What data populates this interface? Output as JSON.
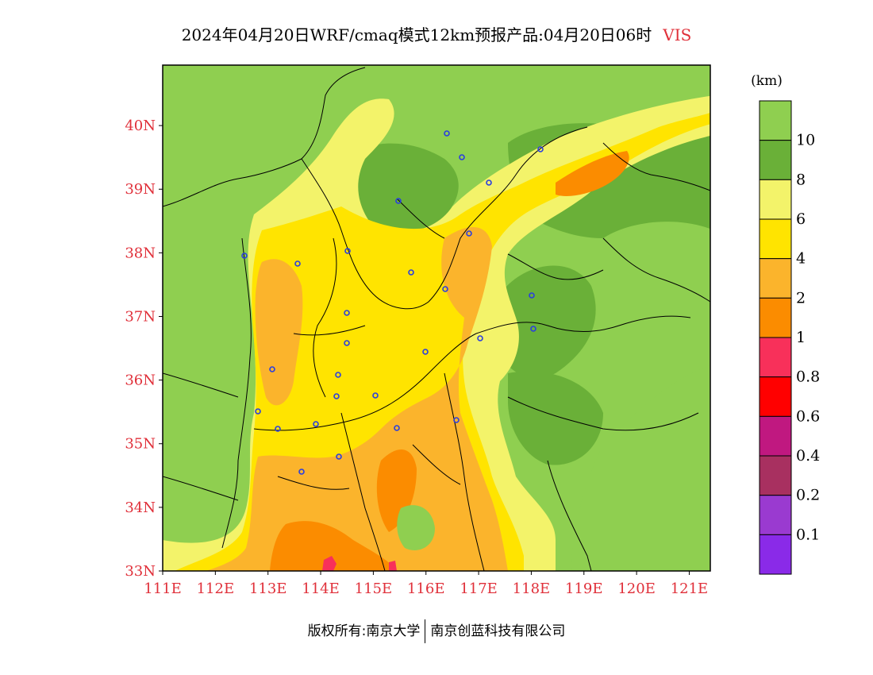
{
  "title": {
    "main": "2024年04月20日WRF/cmaq模式12km预报产品:04月20日06时",
    "variable": "VIS",
    "variable_color": "#e0303a"
  },
  "map": {
    "lon_ticks": [
      "111E",
      "112E",
      "113E",
      "114E",
      "115E",
      "116E",
      "117E",
      "118E",
      "119E",
      "120E",
      "121E"
    ],
    "lat_ticks": [
      "33N",
      "34N",
      "35N",
      "36N",
      "37N",
      "38N",
      "39N",
      "40N"
    ],
    "tick_label_color": "#e0303a"
  },
  "legend": {
    "unit": "(km)",
    "levels": [
      {
        "label": "10",
        "color": "#8fcf50"
      },
      {
        "label": "8",
        "color": "#6ab038"
      },
      {
        "label": "6",
        "color": "#f3f36a"
      },
      {
        "label": "4",
        "color": "#ffe400"
      },
      {
        "label": "2",
        "color": "#fbb42c"
      },
      {
        "label": "1",
        "color": "#fb8c00"
      },
      {
        "label": "0.8",
        "color": "#f8305a"
      },
      {
        "label": "0.6",
        "color": "#ff0000"
      },
      {
        "label": "0.4",
        "color": "#c01880"
      },
      {
        "label": "0.2",
        "color": "#a83060"
      },
      {
        "label": "0.1",
        "color": "#9a3ad0"
      },
      {
        "label": "",
        "color": "#8a2ae8"
      }
    ]
  },
  "footer": {
    "left": "版权所有:南京大学",
    "right": "南京创蓝科技有限公司"
  }
}
